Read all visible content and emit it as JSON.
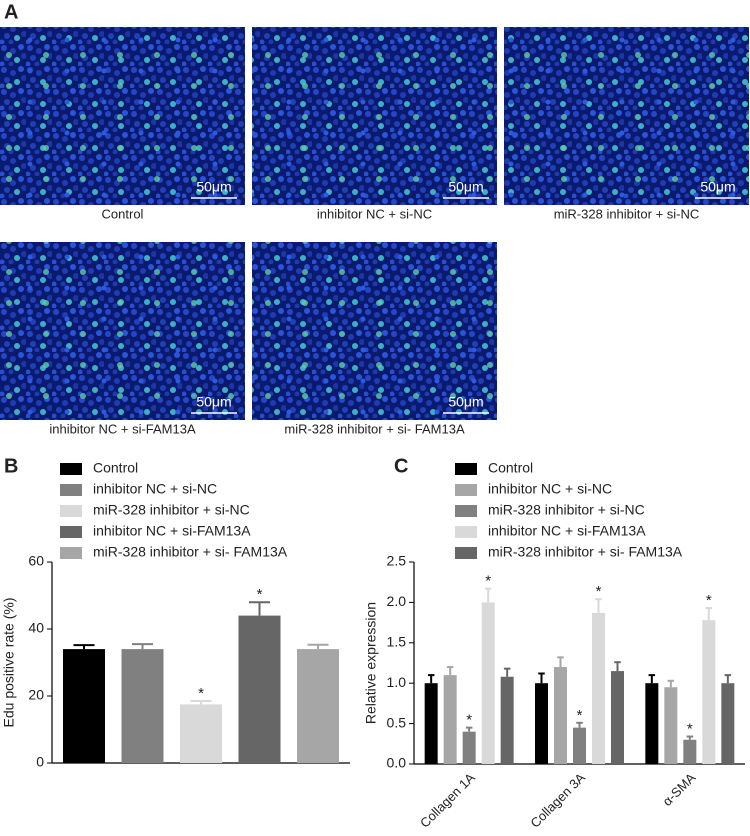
{
  "panel_a": {
    "label": "A",
    "images": [
      {
        "caption": "Control",
        "scale_bar": "50μm"
      },
      {
        "caption": "inhibitor NC + si-NC",
        "scale_bar": "50μm"
      },
      {
        "caption": "miR-328 inhibitor + si-NC",
        "scale_bar": "50μm"
      },
      {
        "caption": "inhibitor NC + si-FAM13A",
        "scale_bar": "50μm"
      },
      {
        "caption": "miR-328 inhibitor + si- FAM13A",
        "scale_bar": "50μm"
      }
    ]
  },
  "chart_data": [
    {
      "type": "bar",
      "label": "B",
      "y_label": "Edu positive rate (%)",
      "ylim": [
        0,
        60
      ],
      "yticks": [
        0,
        20,
        40,
        60
      ],
      "series": [
        {
          "name": "Control",
          "color": "#000000",
          "values": [
            34
          ],
          "errors": [
            1.2
          ],
          "annotations": [
            null
          ]
        },
        {
          "name": "inhibitor NC + si-NC",
          "color": "#808080",
          "values": [
            34
          ],
          "errors": [
            1.5
          ],
          "annotations": [
            null
          ]
        },
        {
          "name": "miR-328 inhibitor + si-NC",
          "color": "#d9d9d9",
          "values": [
            17.5
          ],
          "errors": [
            1
          ],
          "annotations": [
            "*"
          ]
        },
        {
          "name": "inhibitor NC + si-FAM13A",
          "color": "#666666",
          "values": [
            44
          ],
          "errors": [
            4
          ],
          "annotations": [
            "*"
          ]
        },
        {
          "name": "miR-328 inhibitor + si- FAM13A",
          "color": "#a6a6a6",
          "values": [
            34
          ],
          "errors": [
            1.3
          ],
          "annotations": [
            null
          ]
        }
      ]
    },
    {
      "type": "bar",
      "label": "C",
      "y_label": "Relative expression",
      "categories": [
        "Collagen 1A",
        "Collagen 3A",
        "α-SMA"
      ],
      "ylim": [
        0,
        2.5
      ],
      "yticks": [
        {
          "value": 0,
          "label": "0.0"
        },
        {
          "value": 0.5,
          "label": "0.5"
        },
        {
          "value": 1,
          "label": "1.0"
        },
        {
          "value": 1.5,
          "label": "1.5"
        },
        {
          "value": 2,
          "label": "2.0"
        },
        {
          "value": 2.5,
          "label": "2.5"
        }
      ],
      "series": [
        {
          "name": "Control",
          "color": "#000000",
          "values": [
            1.0,
            1.0,
            1.0
          ],
          "errors": [
            0.1,
            0.12,
            0.1
          ],
          "annotations": [
            null,
            null,
            null
          ]
        },
        {
          "name": "inhibitor NC + si-NC",
          "color": "#a6a6a6",
          "values": [
            1.1,
            1.2,
            0.95
          ],
          "errors": [
            0.1,
            0.12,
            0.08
          ],
          "annotations": [
            null,
            null,
            null
          ]
        },
        {
          "name": "miR-328 inhibitor + si-NC",
          "color": "#808080",
          "values": [
            0.4,
            0.45,
            0.3
          ],
          "errors": [
            0.05,
            0.06,
            0.04
          ],
          "annotations": [
            "*",
            "*",
            "*"
          ]
        },
        {
          "name": "inhibitor NC + si-FAM13A",
          "color": "#d9d9d9",
          "values": [
            2.0,
            1.87,
            1.78
          ],
          "errors": [
            0.17,
            0.17,
            0.15
          ],
          "annotations": [
            "*",
            "*",
            "*"
          ]
        },
        {
          "name": "miR-328 inhibitor + si- FAM13A",
          "color": "#666666",
          "values": [
            1.08,
            1.15,
            1.0
          ],
          "errors": [
            0.1,
            0.11,
            0.1
          ],
          "annotations": [
            null,
            null,
            null
          ]
        }
      ]
    }
  ]
}
